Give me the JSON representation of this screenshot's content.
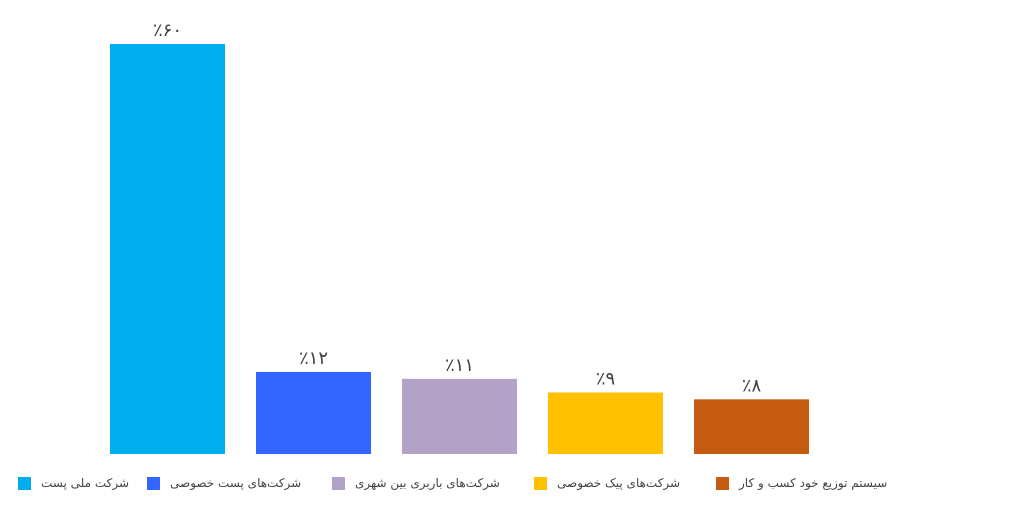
{
  "chart_data": {
    "type": "bar",
    "categories": [
      "شرکت ملی پست",
      "شرکت‌های پست خصوصی",
      "شرکت‌های باربری بین شهری",
      "شرکت‌های پیک خصوصی",
      "سیستم توزیع خود کسب و کار"
    ],
    "values": [
      60,
      12,
      11,
      9,
      8
    ],
    "value_labels": [
      "٪۶۰",
      "٪۱۲",
      "٪۱۱",
      "٪۹",
      "٪۸"
    ],
    "colors": [
      "#00AEEF",
      "#3366FF",
      "#B3A2C7",
      "#FFC000",
      "#C55A11"
    ],
    "ylim": [
      0,
      60
    ],
    "grid": false,
    "legend_position": "bottom"
  },
  "legend": {
    "items": [
      {
        "label": "شرکت ملی پست",
        "color": "#00AEEF"
      },
      {
        "label": "شرکت‌های پست خصوصی",
        "color": "#3366FF"
      },
      {
        "label": "شرکت‌های باربری بین شهری",
        "color": "#B3A2C7"
      },
      {
        "label": "شرکت‌های پیک خصوصی",
        "color": "#FFC000"
      },
      {
        "label": "سیستم توزیع خود کسب و کار",
        "color": "#C55A11"
      }
    ]
  }
}
